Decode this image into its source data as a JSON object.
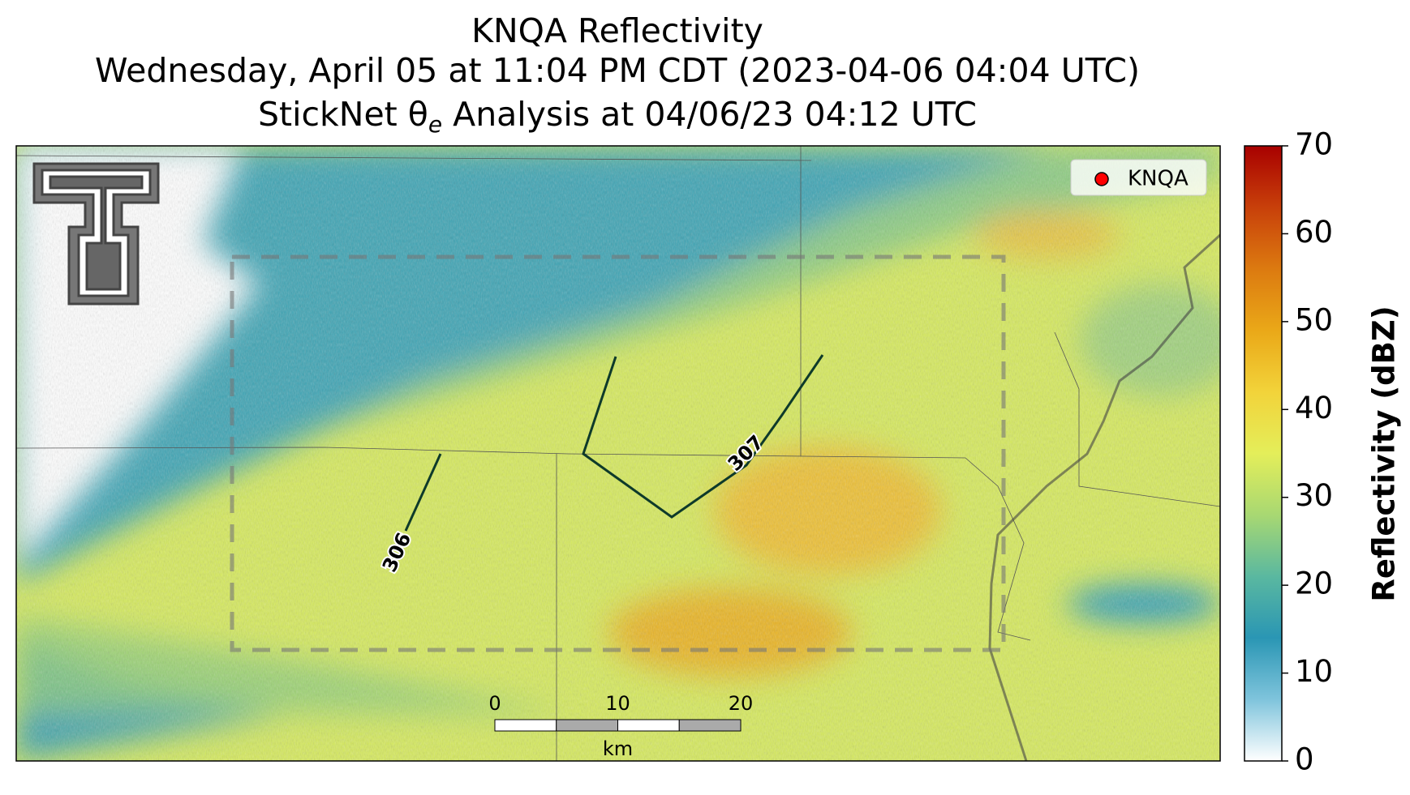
{
  "title": {
    "line1": "KNQA Reflectivity",
    "line2": "Wednesday, April 05 at 11:04 PM CDT (2023-04-06 04:04 UTC)",
    "line3": {
      "before": "StickNet θ",
      "sub": "e",
      "after": " Analysis at 04/06/23 04:12 UTC"
    }
  },
  "legend": {
    "label": "KNQA",
    "color": "#ff0000"
  },
  "contour_labels": [
    306,
    307
  ],
  "scalebar": {
    "ticks": [
      0,
      10,
      20
    ],
    "unit": "km"
  },
  "colorbar": {
    "label": "Reflectivity (dBZ)",
    "lim": [
      0,
      70
    ],
    "ticks": [
      0,
      10,
      20,
      30,
      40,
      50,
      60,
      70
    ],
    "colors": [
      "#ffffff",
      "#7fc4dc",
      "#2a96b4",
      "#5ab8a0",
      "#a8d872",
      "#e4ee5a",
      "#f2d33a",
      "#eaa818",
      "#dc7a10",
      "#c8400a",
      "#a80000"
    ]
  }
}
